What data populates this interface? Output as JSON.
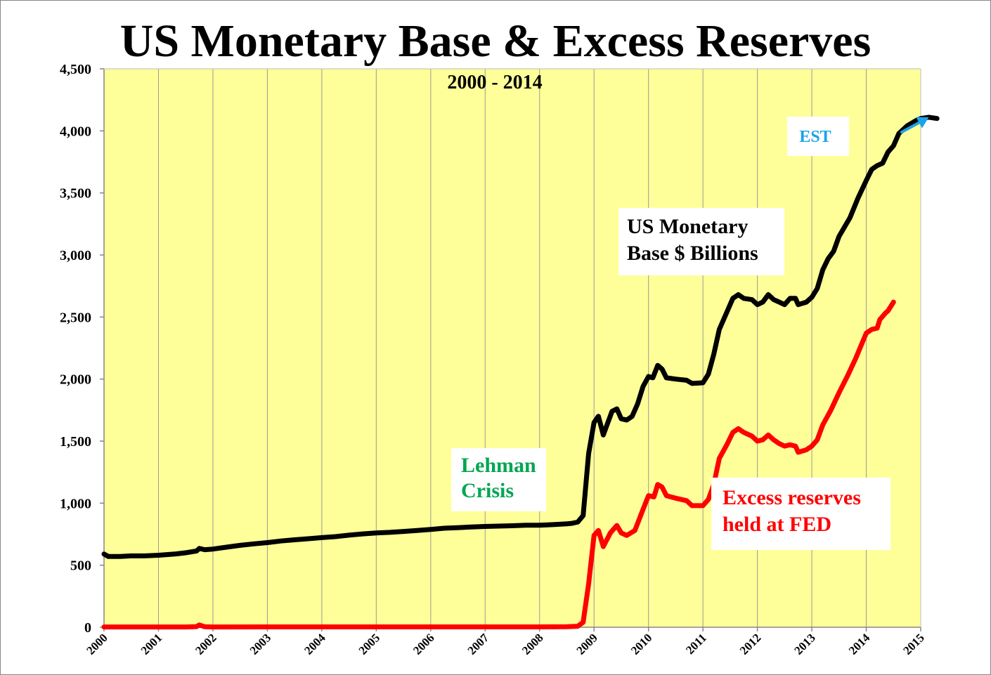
{
  "chart_data": {
    "type": "line",
    "title": "US Monetary Base & Excess Reserves",
    "subtitle": "2000 - 2014",
    "xlabel": "",
    "ylabel": "",
    "xlim": [
      2000,
      2015
    ],
    "ylim": [
      0,
      4500
    ],
    "x_ticks": [
      "2000",
      "2001",
      "2002",
      "2003",
      "2004",
      "2005",
      "2006",
      "2007",
      "2008",
      "2009",
      "2010",
      "2011",
      "2012",
      "2013",
      "2014",
      "2015"
    ],
    "y_ticks": [
      "0",
      "500",
      "1,000",
      "1,500",
      "2,000",
      "2,500",
      "3,000",
      "3,500",
      "4,000",
      "4,500"
    ],
    "grid": "vertical",
    "plot_background": "#FFFF99",
    "series": [
      {
        "name": "US Monetary Base $ Billions",
        "color": "#000000",
        "points": [
          [
            2000.0,
            590
          ],
          [
            2000.08,
            570
          ],
          [
            2000.3,
            570
          ],
          [
            2000.5,
            575
          ],
          [
            2000.75,
            575
          ],
          [
            2001.0,
            580
          ],
          [
            2001.3,
            590
          ],
          [
            2001.5,
            600
          ],
          [
            2001.7,
            615
          ],
          [
            2001.75,
            635
          ],
          [
            2001.85,
            625
          ],
          [
            2002.0,
            630
          ],
          [
            2002.25,
            645
          ],
          [
            2002.5,
            660
          ],
          [
            2002.75,
            672
          ],
          [
            2003.0,
            682
          ],
          [
            2003.25,
            695
          ],
          [
            2003.5,
            705
          ],
          [
            2003.75,
            713
          ],
          [
            2004.0,
            722
          ],
          [
            2004.25,
            730
          ],
          [
            2004.5,
            742
          ],
          [
            2004.75,
            752
          ],
          [
            2005.0,
            760
          ],
          [
            2005.25,
            765
          ],
          [
            2005.5,
            772
          ],
          [
            2005.75,
            780
          ],
          [
            2006.0,
            788
          ],
          [
            2006.25,
            798
          ],
          [
            2006.5,
            802
          ],
          [
            2006.75,
            808
          ],
          [
            2007.0,
            812
          ],
          [
            2007.25,
            815
          ],
          [
            2007.5,
            818
          ],
          [
            2007.75,
            822
          ],
          [
            2008.0,
            822
          ],
          [
            2008.25,
            827
          ],
          [
            2008.5,
            833
          ],
          [
            2008.6,
            838
          ],
          [
            2008.7,
            848
          ],
          [
            2008.8,
            900
          ],
          [
            2008.9,
            1400
          ],
          [
            2009.0,
            1650
          ],
          [
            2009.08,
            1700
          ],
          [
            2009.17,
            1550
          ],
          [
            2009.33,
            1740
          ],
          [
            2009.42,
            1760
          ],
          [
            2009.5,
            1680
          ],
          [
            2009.6,
            1670
          ],
          [
            2009.7,
            1700
          ],
          [
            2009.8,
            1800
          ],
          [
            2009.9,
            1940
          ],
          [
            2010.0,
            2020
          ],
          [
            2010.08,
            2010
          ],
          [
            2010.17,
            2110
          ],
          [
            2010.25,
            2080
          ],
          [
            2010.33,
            2010
          ],
          [
            2010.5,
            2000
          ],
          [
            2010.7,
            1990
          ],
          [
            2010.8,
            1965
          ],
          [
            2011.0,
            1970
          ],
          [
            2011.1,
            2040
          ],
          [
            2011.2,
            2200
          ],
          [
            2011.3,
            2400
          ],
          [
            2011.45,
            2550
          ],
          [
            2011.55,
            2650
          ],
          [
            2011.65,
            2680
          ],
          [
            2011.75,
            2650
          ],
          [
            2011.9,
            2640
          ],
          [
            2012.0,
            2600
          ],
          [
            2012.1,
            2620
          ],
          [
            2012.2,
            2680
          ],
          [
            2012.3,
            2640
          ],
          [
            2012.4,
            2620
          ],
          [
            2012.5,
            2600
          ],
          [
            2012.6,
            2650
          ],
          [
            2012.7,
            2650
          ],
          [
            2012.75,
            2600
          ],
          [
            2012.9,
            2620
          ],
          [
            2013.0,
            2660
          ],
          [
            2013.1,
            2730
          ],
          [
            2013.2,
            2880
          ],
          [
            2013.3,
            2970
          ],
          [
            2013.4,
            3030
          ],
          [
            2013.5,
            3150
          ],
          [
            2013.7,
            3300
          ],
          [
            2013.85,
            3460
          ],
          [
            2014.0,
            3600
          ],
          [
            2014.1,
            3690
          ],
          [
            2014.2,
            3720
          ],
          [
            2014.3,
            3740
          ],
          [
            2014.4,
            3830
          ],
          [
            2014.5,
            3880
          ],
          [
            2014.6,
            3980
          ],
          [
            2014.75,
            4040
          ],
          [
            2014.9,
            4080
          ],
          [
            2015.0,
            4100
          ],
          [
            2015.15,
            4110
          ],
          [
            2015.3,
            4100
          ]
        ]
      },
      {
        "name": "Excess reserves held at FED",
        "color": "#FF0000",
        "points": [
          [
            2000.0,
            2
          ],
          [
            2001.5,
            2
          ],
          [
            2001.7,
            5
          ],
          [
            2001.75,
            18
          ],
          [
            2001.85,
            4
          ],
          [
            2002.0,
            2
          ],
          [
            2003.0,
            3
          ],
          [
            2004.0,
            3
          ],
          [
            2005.0,
            3
          ],
          [
            2006.0,
            3
          ],
          [
            2007.0,
            3
          ],
          [
            2008.0,
            3
          ],
          [
            2008.5,
            4
          ],
          [
            2008.7,
            8
          ],
          [
            2008.8,
            40
          ],
          [
            2008.9,
            350
          ],
          [
            2009.0,
            740
          ],
          [
            2009.08,
            780
          ],
          [
            2009.17,
            650
          ],
          [
            2009.3,
            760
          ],
          [
            2009.42,
            820
          ],
          [
            2009.5,
            760
          ],
          [
            2009.6,
            740
          ],
          [
            2009.75,
            780
          ],
          [
            2009.9,
            950
          ],
          [
            2010.0,
            1060
          ],
          [
            2010.1,
            1050
          ],
          [
            2010.17,
            1150
          ],
          [
            2010.25,
            1130
          ],
          [
            2010.33,
            1060
          ],
          [
            2010.5,
            1040
          ],
          [
            2010.7,
            1020
          ],
          [
            2010.8,
            980
          ],
          [
            2011.0,
            980
          ],
          [
            2011.1,
            1030
          ],
          [
            2011.2,
            1150
          ],
          [
            2011.3,
            1360
          ],
          [
            2011.45,
            1480
          ],
          [
            2011.55,
            1570
          ],
          [
            2011.65,
            1600
          ],
          [
            2011.75,
            1570
          ],
          [
            2011.9,
            1540
          ],
          [
            2012.0,
            1500
          ],
          [
            2012.1,
            1510
          ],
          [
            2012.2,
            1550
          ],
          [
            2012.3,
            1510
          ],
          [
            2012.4,
            1480
          ],
          [
            2012.5,
            1460
          ],
          [
            2012.6,
            1470
          ],
          [
            2012.7,
            1460
          ],
          [
            2012.75,
            1410
          ],
          [
            2012.9,
            1430
          ],
          [
            2013.0,
            1460
          ],
          [
            2013.1,
            1510
          ],
          [
            2013.2,
            1630
          ],
          [
            2013.35,
            1750
          ],
          [
            2013.5,
            1890
          ],
          [
            2013.65,
            2020
          ],
          [
            2013.8,
            2160
          ],
          [
            2014.0,
            2370
          ],
          [
            2014.1,
            2400
          ],
          [
            2014.2,
            2410
          ],
          [
            2014.25,
            2480
          ],
          [
            2014.35,
            2530
          ],
          [
            2014.4,
            2550
          ],
          [
            2014.5,
            2620
          ]
        ]
      }
    ],
    "est_arrow": {
      "color": "#1AA3E8",
      "from": [
        2014.65,
        3990
      ],
      "to": [
        2015.15,
        4110
      ]
    },
    "annotations": [
      {
        "id": "est",
        "lines": [
          "EST"
        ],
        "color": "#1AA3E8"
      },
      {
        "id": "base",
        "lines": [
          "US Monetary",
          "Base $ Billions"
        ],
        "color": "#000000"
      },
      {
        "id": "lehman",
        "lines": [
          "Lehman",
          "Crisis"
        ],
        "color": "#00A651"
      },
      {
        "id": "excess",
        "lines": [
          "Excess reserves",
          "held at FED"
        ],
        "color": "#FF0000"
      }
    ]
  }
}
